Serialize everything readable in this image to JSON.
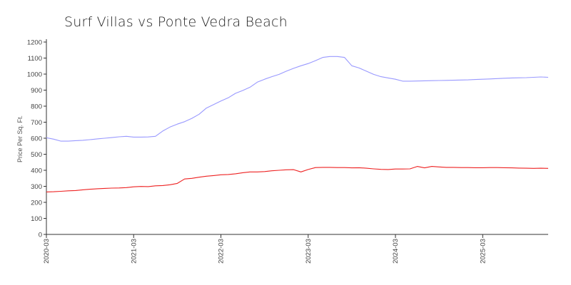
{
  "chart_data": {
    "type": "line",
    "title": "Surf  Villas vs Ponte Vedra Beach",
    "ylabel": "Price Per Sq. Ft.",
    "xlabel": "",
    "ylim": [
      0,
      1200
    ],
    "yticks": [
      0,
      100,
      200,
      300,
      400,
      500,
      600,
      700,
      800,
      900,
      1000,
      1100,
      1200
    ],
    "xticks": [
      "2020-03",
      "2021-03",
      "2022-03",
      "2023-03",
      "2024-03",
      "2025-03"
    ],
    "xlim": [
      "2020-03",
      "2025-12"
    ],
    "colors": {
      "series_a": "#9999ff",
      "series_b": "#ee2222",
      "axis": "#333333"
    },
    "grid": false,
    "series": [
      {
        "points": [
          [
            "2020-03",
            603
          ],
          [
            "2020-04",
            594
          ],
          [
            "2020-05",
            582
          ],
          [
            "2020-06",
            582
          ],
          [
            "2020-07",
            585
          ],
          [
            "2020-08",
            587
          ],
          [
            "2020-09",
            591
          ],
          [
            "2020-10",
            596
          ],
          [
            "2020-11",
            600
          ],
          [
            "2020-12",
            604
          ],
          [
            "2021-01",
            609
          ],
          [
            "2021-02",
            612
          ],
          [
            "2021-03",
            607
          ],
          [
            "2021-04",
            607
          ],
          [
            "2021-05",
            608
          ],
          [
            "2021-06",
            612
          ],
          [
            "2021-07",
            645
          ],
          [
            "2021-08",
            670
          ],
          [
            "2021-09",
            688
          ],
          [
            "2021-10",
            703
          ],
          [
            "2021-11",
            724
          ],
          [
            "2021-12",
            750
          ],
          [
            "2022-01",
            788
          ],
          [
            "2022-02",
            810
          ],
          [
            "2022-03",
            832
          ],
          [
            "2022-04",
            852
          ],
          [
            "2022-05",
            880
          ],
          [
            "2022-06",
            898
          ],
          [
            "2022-07",
            918
          ],
          [
            "2022-08",
            950
          ],
          [
            "2022-09",
            968
          ],
          [
            "2022-10",
            984
          ],
          [
            "2022-11",
            998
          ],
          [
            "2022-12",
            1018
          ],
          [
            "2023-01",
            1036
          ],
          [
            "2023-02",
            1052
          ],
          [
            "2023-03",
            1066
          ],
          [
            "2023-04",
            1084
          ],
          [
            "2023-05",
            1104
          ],
          [
            "2023-06",
            1110
          ],
          [
            "2023-07",
            1110
          ],
          [
            "2023-08",
            1104
          ],
          [
            "2023-09",
            1052
          ],
          [
            "2023-10",
            1038
          ],
          [
            "2023-11",
            1018
          ],
          [
            "2023-12",
            998
          ],
          [
            "2024-01",
            984
          ],
          [
            "2024-02",
            976
          ],
          [
            "2024-03",
            968
          ],
          [
            "2024-04",
            956
          ],
          [
            "2024-05",
            956
          ],
          [
            "2024-06",
            957
          ],
          [
            "2024-07",
            958
          ],
          [
            "2024-08",
            959
          ],
          [
            "2024-09",
            960
          ],
          [
            "2024-10",
            961
          ],
          [
            "2024-11",
            962
          ],
          [
            "2024-12",
            963
          ],
          [
            "2025-01",
            964
          ],
          [
            "2025-02",
            966
          ],
          [
            "2025-03",
            968
          ],
          [
            "2025-04",
            970
          ],
          [
            "2025-05",
            972
          ],
          [
            "2025-06",
            974
          ],
          [
            "2025-07",
            976
          ],
          [
            "2025-08",
            977
          ],
          [
            "2025-09",
            978
          ],
          [
            "2025-10",
            980
          ],
          [
            "2025-11",
            982
          ],
          [
            "2025-12",
            980
          ]
        ]
      },
      {
        "points": [
          [
            "2020-03",
            265
          ],
          [
            "2020-04",
            266
          ],
          [
            "2020-05",
            269
          ],
          [
            "2020-06",
            272
          ],
          [
            "2020-07",
            274
          ],
          [
            "2020-08",
            278
          ],
          [
            "2020-09",
            282
          ],
          [
            "2020-10",
            285
          ],
          [
            "2020-11",
            287
          ],
          [
            "2020-12",
            289
          ],
          [
            "2021-01",
            290
          ],
          [
            "2021-02",
            292
          ],
          [
            "2021-03",
            297
          ],
          [
            "2021-04",
            299
          ],
          [
            "2021-05",
            298
          ],
          [
            "2021-06",
            303
          ],
          [
            "2021-07",
            305
          ],
          [
            "2021-08",
            310
          ],
          [
            "2021-09",
            318
          ],
          [
            "2021-10",
            346
          ],
          [
            "2021-11",
            350
          ],
          [
            "2021-12",
            357
          ],
          [
            "2022-01",
            363
          ],
          [
            "2022-02",
            367
          ],
          [
            "2022-03",
            372
          ],
          [
            "2022-04",
            374
          ],
          [
            "2022-05",
            378
          ],
          [
            "2022-06",
            385
          ],
          [
            "2022-07",
            390
          ],
          [
            "2022-08",
            390
          ],
          [
            "2022-09",
            392
          ],
          [
            "2022-10",
            397
          ],
          [
            "2022-11",
            400
          ],
          [
            "2022-12",
            403
          ],
          [
            "2023-01",
            404
          ],
          [
            "2023-02",
            390
          ],
          [
            "2023-03",
            405
          ],
          [
            "2023-04",
            417
          ],
          [
            "2023-05",
            418
          ],
          [
            "2023-06",
            418
          ],
          [
            "2023-07",
            417
          ],
          [
            "2023-08",
            417
          ],
          [
            "2023-09",
            415
          ],
          [
            "2023-10",
            416
          ],
          [
            "2023-11",
            413
          ],
          [
            "2023-12",
            409
          ],
          [
            "2024-01",
            406
          ],
          [
            "2024-02",
            405
          ],
          [
            "2024-03",
            408
          ],
          [
            "2024-04",
            408
          ],
          [
            "2024-05",
            409
          ],
          [
            "2024-06",
            424
          ],
          [
            "2024-07",
            415
          ],
          [
            "2024-08",
            424
          ],
          [
            "2024-09",
            421
          ],
          [
            "2024-10",
            418
          ],
          [
            "2024-11",
            418
          ],
          [
            "2024-12",
            417
          ],
          [
            "2025-01",
            417
          ],
          [
            "2025-02",
            416
          ],
          [
            "2025-03",
            416
          ],
          [
            "2025-04",
            417
          ],
          [
            "2025-05",
            417
          ],
          [
            "2025-06",
            416
          ],
          [
            "2025-07",
            415
          ],
          [
            "2025-08",
            414
          ],
          [
            "2025-09",
            413
          ],
          [
            "2025-10",
            412
          ],
          [
            "2025-11",
            413
          ],
          [
            "2025-12",
            412
          ]
        ]
      }
    ]
  }
}
